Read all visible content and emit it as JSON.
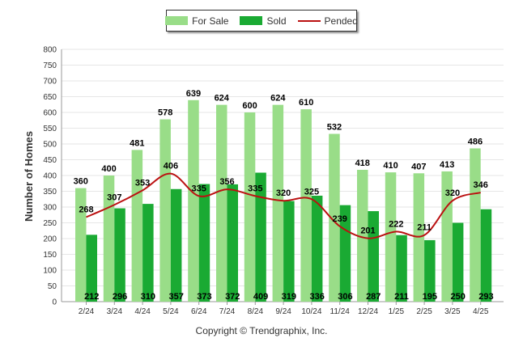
{
  "legend": {
    "for_sale": "For Sale",
    "sold": "Sold",
    "pended": "Pended"
  },
  "footer": {
    "copyright": "Copyright © Trendgraphix, Inc."
  },
  "chart_data": {
    "type": "bar",
    "title": "",
    "xlabel": "",
    "ylabel": "Number of Homes",
    "ylim": [
      0,
      800
    ],
    "yticks": [
      0,
      50,
      100,
      150,
      200,
      250,
      300,
      350,
      400,
      450,
      500,
      550,
      600,
      650,
      700,
      750,
      800
    ],
    "grid": true,
    "legend_position": "top-center",
    "categories": [
      "2/24",
      "3/24",
      "4/24",
      "5/24",
      "6/24",
      "7/24",
      "8/24",
      "9/24",
      "10/24",
      "11/24",
      "12/24",
      "1/25",
      "2/25",
      "3/25",
      "4/25"
    ],
    "series": [
      {
        "name": "For Sale",
        "type": "bar",
        "color": "#99dd88",
        "values": [
          360,
          400,
          481,
          578,
          639,
          624,
          600,
          624,
          610,
          532,
          418,
          410,
          407,
          413,
          486
        ]
      },
      {
        "name": "Sold",
        "type": "bar",
        "color": "#1aaa33",
        "values": [
          212,
          296,
          310,
          357,
          373,
          372,
          409,
          319,
          336,
          306,
          287,
          211,
          195,
          250,
          293
        ]
      },
      {
        "name": "Pended",
        "type": "line",
        "color": "#bb1111",
        "values": [
          268,
          307,
          353,
          406,
          335,
          356,
          335,
          320,
          325,
          239,
          201,
          222,
          211,
          320,
          346
        ]
      }
    ]
  }
}
